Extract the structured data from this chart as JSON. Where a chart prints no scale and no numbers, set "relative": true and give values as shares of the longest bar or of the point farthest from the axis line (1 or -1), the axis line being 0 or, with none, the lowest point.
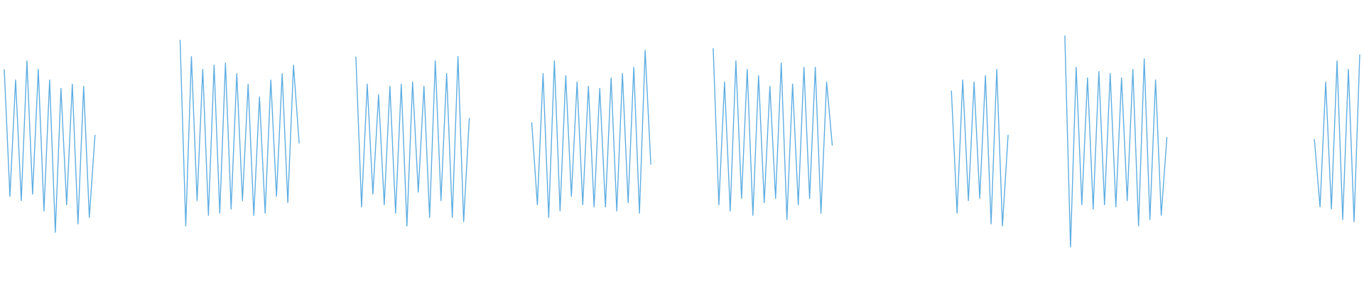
{
  "chart_data": {
    "type": "line",
    "relative": true,
    "categories": [
      null,
      null,
      null,
      null,
      null,
      null,
      null,
      null,
      null,
      null,
      null,
      null,
      null,
      null,
      null,
      null,
      null,
      null,
      null,
      null,
      null,
      null,
      null,
      null,
      null,
      null,
      null,
      null,
      null,
      null,
      null,
      null,
      null,
      null,
      null,
      null,
      null,
      null,
      null,
      null,
      null,
      null,
      null,
      null,
      null,
      null,
      null,
      null,
      null,
      null,
      null,
      null,
      null,
      null,
      null,
      null,
      null,
      null,
      null,
      null,
      null,
      null,
      null,
      null,
      null,
      null,
      null,
      null,
      null,
      null,
      null,
      null,
      null,
      null,
      null,
      null,
      null,
      null,
      null,
      null,
      null,
      null,
      null,
      null,
      null,
      null,
      null,
      null,
      null,
      null,
      null,
      null,
      null,
      null,
      null,
      null,
      null,
      null,
      null,
      null,
      null,
      null,
      null,
      null,
      null,
      null,
      null,
      null,
      null,
      null,
      null,
      null,
      null,
      null,
      null,
      null,
      null,
      null,
      null,
      null,
      null,
      null,
      null,
      null,
      null,
      null,
      null,
      null,
      null,
      null,
      null,
      null,
      null,
      null,
      null,
      null,
      null,
      null,
      null,
      null,
      null,
      null,
      null,
      null,
      null,
      null,
      null,
      null,
      null,
      null,
      null,
      null,
      null,
      null,
      null,
      null,
      null,
      null,
      null,
      null,
      null,
      null,
      null,
      null,
      null,
      null,
      null,
      null,
      null,
      null,
      null,
      null,
      null,
      null,
      null,
      null,
      null,
      null,
      null,
      null,
      null,
      null,
      null,
      null,
      null,
      null,
      null,
      null,
      null,
      null,
      null,
      null,
      null,
      null,
      null,
      null,
      null,
      null,
      null,
      null,
      null,
      null,
      null,
      null,
      null,
      null,
      null,
      null,
      null,
      null,
      null,
      null,
      null,
      null,
      null,
      null,
      null,
      null,
      null,
      null,
      null,
      null,
      null,
      null,
      null,
      null,
      null,
      null,
      null,
      null,
      null,
      null,
      null,
      null,
      null,
      null,
      null,
      null,
      null,
      null
    ],
    "series": [
      {
        "color": "#5dade2",
        "values": [
          0.84,
          0.24,
          0.79,
          0.22,
          0.88,
          0.25,
          0.84,
          0.17,
          0.79,
          0.07,
          0.75,
          0.2,
          0.77,
          0.11,
          0.76,
          0.14,
          0.53,
          null,
          null,
          null,
          null,
          null,
          null,
          null,
          null,
          null,
          null,
          null,
          null,
          null,
          null,
          null,
          null,
          null,
          null,
          null,
          null,
          null,
          null,
          null,
          null,
          null,
          null,
          null,
          null,
          null,
          null,
          null,
          null,
          null,
          null,
          null,
          null,
          null,
          null,
          null,
          null,
          null,
          null,
          null,
          null,
          null,
          null,
          null,
          null,
          null,
          null,
          null,
          null,
          null,
          null,
          null,
          null,
          null,
          null,
          null,
          null,
          null,
          null,
          null,
          null,
          null,
          null,
          null,
          null,
          null,
          null,
          null,
          null,
          null,
          null,
          null,
          null,
          null,
          null,
          null,
          null,
          null,
          null,
          null,
          null,
          null,
          null,
          null,
          null,
          null,
          null,
          null,
          null,
          null,
          null,
          null,
          null,
          null,
          null,
          null,
          null,
          null,
          null,
          null,
          null,
          null,
          null,
          null,
          null,
          null,
          null,
          null,
          null,
          null,
          null,
          null,
          null,
          null,
          null,
          null,
          null,
          null,
          null,
          null,
          null,
          null,
          null,
          null,
          null,
          null,
          null,
          null,
          null,
          null,
          null,
          null,
          null,
          null,
          null,
          null,
          null,
          null,
          null,
          null,
          null,
          null,
          null,
          null,
          null,
          null,
          null,
          null,
          null,
          null,
          null,
          null,
          null,
          null,
          null,
          null,
          null,
          null,
          null,
          null,
          null,
          null,
          null,
          null,
          null,
          null,
          null,
          null,
          null,
          null,
          null,
          null,
          null,
          null,
          null,
          null,
          null,
          null,
          null,
          null,
          null,
          null,
          null,
          null,
          null,
          null,
          null,
          null,
          null,
          null,
          null,
          null,
          null,
          null,
          null,
          null,
          null,
          null,
          null,
          null,
          null,
          null,
          null,
          null,
          null,
          null,
          null,
          null,
          null,
          null,
          null,
          null,
          null,
          null,
          null,
          null,
          null,
          null,
          null,
          null
        ]
      },
      {
        "color": "#5dade2",
        "values": [
          null,
          null,
          null,
          null,
          null,
          null,
          null,
          null,
          null,
          null,
          null,
          null,
          null,
          null,
          null,
          null,
          null,
          null,
          null,
          null,
          null,
          null,
          null,
          null,
          null,
          null,
          null,
          null,
          null,
          null,
          null,
          0.98,
          0.1,
          0.9,
          0.22,
          0.84,
          0.15,
          0.86,
          0.16,
          0.87,
          0.18,
          0.82,
          0.22,
          0.77,
          0.15,
          0.71,
          0.16,
          0.79,
          0.24,
          0.82,
          0.21,
          0.86,
          0.49,
          null,
          null,
          null,
          null,
          null,
          null,
          null,
          null,
          null,
          null,
          null,
          null,
          null,
          null,
          null,
          null,
          null,
          null,
          null,
          null,
          null,
          null,
          null,
          null,
          null,
          null,
          null,
          null,
          null,
          null,
          null,
          null,
          null,
          null,
          null,
          null,
          null,
          null,
          null,
          null,
          null,
          null,
          null,
          null,
          null,
          null,
          null,
          null,
          null,
          null,
          null,
          null,
          null,
          null,
          null,
          null,
          null,
          null,
          null,
          null,
          null,
          null,
          null,
          null,
          null,
          null,
          null,
          null,
          null,
          null,
          null,
          null,
          null,
          null,
          null,
          null,
          null,
          null,
          null,
          null,
          null,
          null,
          null,
          null,
          null,
          null,
          null,
          null,
          null,
          null,
          null,
          null,
          null,
          null,
          null,
          null,
          null,
          null,
          null,
          null,
          null,
          null,
          null,
          null,
          null,
          null,
          null,
          null,
          null,
          null,
          null,
          null,
          null,
          null,
          null,
          null,
          null,
          null,
          null,
          null,
          null,
          null,
          null,
          null,
          null,
          null,
          null,
          null,
          null,
          null,
          null,
          null,
          null,
          null,
          null,
          null,
          null,
          null,
          null,
          null,
          null,
          null,
          null,
          null,
          null,
          null,
          null,
          null,
          null,
          null,
          null,
          null,
          null,
          null,
          null,
          null,
          null,
          null,
          null,
          null,
          null,
          null,
          null,
          null,
          null,
          null,
          null,
          null,
          null,
          null,
          null,
          null,
          null,
          null,
          null,
          null,
          null,
          null,
          null,
          null,
          null,
          null,
          null,
          null,
          null,
          null,
          null
        ]
      },
      {
        "color": "#5dade2",
        "values": [
          null,
          null,
          null,
          null,
          null,
          null,
          null,
          null,
          null,
          null,
          null,
          null,
          null,
          null,
          null,
          null,
          null,
          null,
          null,
          null,
          null,
          null,
          null,
          null,
          null,
          null,
          null,
          null,
          null,
          null,
          null,
          null,
          null,
          null,
          null,
          null,
          null,
          null,
          null,
          null,
          null,
          null,
          null,
          null,
          null,
          null,
          null,
          null,
          null,
          null,
          null,
          null,
          null,
          null,
          null,
          null,
          null,
          null,
          null,
          null,
          null,
          null,
          0.9,
          0.19,
          0.77,
          0.25,
          0.72,
          0.2,
          0.76,
          0.16,
          0.77,
          0.1,
          0.78,
          0.26,
          0.76,
          0.14,
          0.88,
          0.22,
          0.82,
          0.14,
          0.9,
          0.12,
          0.61,
          null,
          null,
          null,
          null,
          null,
          null,
          null,
          null,
          null,
          null,
          null,
          null,
          null,
          null,
          null,
          null,
          null,
          null,
          null,
          null,
          null,
          null,
          null,
          null,
          null,
          null,
          null,
          null,
          null,
          null,
          null,
          null,
          null,
          null,
          null,
          null,
          null,
          null,
          null,
          null,
          null,
          null,
          null,
          null,
          null,
          null,
          null,
          null,
          null,
          null,
          null,
          null,
          null,
          null,
          null,
          null,
          null,
          null,
          null,
          null,
          null,
          null,
          null,
          null,
          null,
          null,
          null,
          null,
          null,
          null,
          null,
          null,
          null,
          null,
          null,
          null,
          null,
          null,
          null,
          null,
          null,
          null,
          null,
          null,
          null,
          null,
          null,
          null,
          null,
          null,
          null,
          null,
          null,
          null,
          null,
          null,
          null,
          null,
          null,
          null,
          null,
          null,
          null,
          null,
          null,
          null,
          null,
          null,
          null,
          null,
          null,
          null,
          null,
          null,
          null,
          null,
          null,
          null,
          null,
          null,
          null,
          null,
          null,
          null,
          null,
          null,
          null,
          null,
          null,
          null,
          null,
          null,
          null,
          null,
          null,
          null,
          null,
          null,
          null,
          null,
          null,
          null,
          null,
          null,
          null,
          null,
          null,
          null,
          null,
          null,
          null,
          null,
          null,
          null,
          null,
          null,
          null
        ]
      },
      {
        "color": "#5dade2",
        "values": [
          null,
          null,
          null,
          null,
          null,
          null,
          null,
          null,
          null,
          null,
          null,
          null,
          null,
          null,
          null,
          null,
          null,
          null,
          null,
          null,
          null,
          null,
          null,
          null,
          null,
          null,
          null,
          null,
          null,
          null,
          null,
          null,
          null,
          null,
          null,
          null,
          null,
          null,
          null,
          null,
          null,
          null,
          null,
          null,
          null,
          null,
          null,
          null,
          null,
          null,
          null,
          null,
          null,
          null,
          null,
          null,
          null,
          null,
          null,
          null,
          null,
          null,
          null,
          null,
          null,
          null,
          null,
          null,
          null,
          null,
          null,
          null,
          null,
          null,
          null,
          null,
          null,
          null,
          null,
          null,
          null,
          null,
          null,
          null,
          null,
          null,
          null,
          null,
          null,
          null,
          null,
          null,
          null,
          0.59,
          0.2,
          0.82,
          0.14,
          0.88,
          0.17,
          0.81,
          0.24,
          0.78,
          0.2,
          0.76,
          0.19,
          0.75,
          0.19,
          0.8,
          0.17,
          0.82,
          0.21,
          0.85,
          0.16,
          0.93,
          0.39,
          null,
          null,
          null,
          null,
          null,
          null,
          null,
          null,
          null,
          null,
          null,
          null,
          null,
          null,
          null,
          null,
          null,
          null,
          null,
          null,
          null,
          null,
          null,
          null,
          null,
          null,
          null,
          null,
          null,
          null,
          null,
          null,
          null,
          null,
          null,
          null,
          null,
          null,
          null,
          null,
          null,
          null,
          null,
          null,
          null,
          null,
          null,
          null,
          null,
          null,
          null,
          null,
          null,
          null,
          null,
          null,
          null,
          null,
          null,
          null,
          null,
          null,
          null,
          null,
          null,
          null,
          null,
          null,
          null,
          null,
          null,
          null,
          null,
          null,
          null,
          null,
          null,
          null,
          null,
          null,
          null,
          null,
          null,
          null,
          null,
          null,
          null,
          null,
          null,
          null,
          null,
          null,
          null,
          null,
          null,
          null,
          null,
          null,
          null,
          null,
          null,
          null,
          null,
          null,
          null,
          null,
          null,
          null,
          null,
          null,
          null,
          null,
          null,
          null,
          null,
          null,
          null,
          null,
          null,
          null,
          null,
          null,
          null,
          null,
          null
        ]
      },
      {
        "color": "#5dade2",
        "values": [
          null,
          null,
          null,
          null,
          null,
          null,
          null,
          null,
          null,
          null,
          null,
          null,
          null,
          null,
          null,
          null,
          null,
          null,
          null,
          null,
          null,
          null,
          null,
          null,
          null,
          null,
          null,
          null,
          null,
          null,
          null,
          null,
          null,
          null,
          null,
          null,
          null,
          null,
          null,
          null,
          null,
          null,
          null,
          null,
          null,
          null,
          null,
          null,
          null,
          null,
          null,
          null,
          null,
          null,
          null,
          null,
          null,
          null,
          null,
          null,
          null,
          null,
          null,
          null,
          null,
          null,
          null,
          null,
          null,
          null,
          null,
          null,
          null,
          null,
          null,
          null,
          null,
          null,
          null,
          null,
          null,
          null,
          null,
          null,
          null,
          null,
          null,
          null,
          null,
          null,
          null,
          null,
          null,
          null,
          null,
          null,
          null,
          null,
          null,
          null,
          null,
          null,
          null,
          null,
          null,
          null,
          null,
          null,
          null,
          null,
          null,
          null,
          null,
          null,
          null,
          null,
          null,
          null,
          null,
          null,
          null,
          null,
          null,
          null,
          null,
          0.94,
          0.2,
          0.78,
          0.17,
          0.88,
          0.23,
          0.84,
          0.15,
          0.81,
          0.21,
          0.76,
          0.23,
          0.87,
          0.13,
          0.77,
          0.2,
          0.85,
          0.23,
          0.85,
          0.16,
          0.78,
          0.48,
          null,
          null,
          null,
          null,
          null,
          null,
          null,
          null,
          null,
          null,
          null,
          null,
          null,
          null,
          null,
          null,
          null,
          null,
          null,
          null,
          null,
          null,
          null,
          null,
          null,
          null,
          null,
          null,
          null,
          null,
          null,
          null,
          null,
          null,
          null,
          null,
          null,
          null,
          null,
          null,
          null,
          null,
          null,
          null,
          null,
          null,
          null,
          null,
          null,
          null,
          null,
          null,
          null,
          null,
          null,
          null,
          null,
          null,
          null,
          null,
          null,
          null,
          null,
          null,
          null,
          null,
          null,
          null,
          null,
          null,
          null,
          null,
          null,
          null,
          null,
          null,
          null,
          null,
          null,
          null,
          null,
          null,
          null,
          null,
          null,
          null,
          null,
          null,
          null,
          null,
          null,
          null,
          null
        ]
      },
      {
        "color": "#5dade2",
        "values": [
          null,
          null,
          null,
          null,
          null,
          null,
          null,
          null,
          null,
          null,
          null,
          null,
          null,
          null,
          null,
          null,
          null,
          null,
          null,
          null,
          null,
          null,
          null,
          null,
          null,
          null,
          null,
          null,
          null,
          null,
          null,
          null,
          null,
          null,
          null,
          null,
          null,
          null,
          null,
          null,
          null,
          null,
          null,
          null,
          null,
          null,
          null,
          null,
          null,
          null,
          null,
          null,
          null,
          null,
          null,
          null,
          null,
          null,
          null,
          null,
          null,
          null,
          null,
          null,
          null,
          null,
          null,
          null,
          null,
          null,
          null,
          null,
          null,
          null,
          null,
          null,
          null,
          null,
          null,
          null,
          null,
          null,
          null,
          null,
          null,
          null,
          null,
          null,
          null,
          null,
          null,
          null,
          null,
          null,
          null,
          null,
          null,
          null,
          null,
          null,
          null,
          null,
          null,
          null,
          null,
          null,
          null,
          null,
          null,
          null,
          null,
          null,
          null,
          null,
          null,
          null,
          null,
          null,
          null,
          null,
          null,
          null,
          null,
          null,
          null,
          null,
          null,
          null,
          null,
          null,
          null,
          null,
          null,
          null,
          null,
          null,
          null,
          null,
          null,
          null,
          null,
          null,
          null,
          null,
          null,
          null,
          null,
          null,
          null,
          null,
          null,
          null,
          null,
          null,
          null,
          null,
          null,
          null,
          null,
          null,
          null,
          null,
          null,
          null,
          null,
          null,
          null,
          0.74,
          0.16,
          0.79,
          0.22,
          0.78,
          0.23,
          0.81,
          0.11,
          0.84,
          0.1,
          0.53,
          null,
          null,
          null,
          null,
          null,
          null,
          null,
          null,
          null,
          null,
          null,
          null,
          null,
          null,
          null,
          null,
          null,
          null,
          null,
          null,
          null,
          null,
          null,
          null,
          null,
          null,
          null,
          null,
          null,
          null,
          null,
          null,
          null,
          null,
          null,
          null,
          null,
          null,
          null,
          null,
          null,
          null,
          null,
          null,
          null,
          null,
          null,
          null,
          null,
          null,
          null,
          null,
          null,
          null,
          null,
          null,
          null,
          null,
          null,
          null,
          null,
          null
        ]
      },
      {
        "color": "#5dade2",
        "values": [
          null,
          null,
          null,
          null,
          null,
          null,
          null,
          null,
          null,
          null,
          null,
          null,
          null,
          null,
          null,
          null,
          null,
          null,
          null,
          null,
          null,
          null,
          null,
          null,
          null,
          null,
          null,
          null,
          null,
          null,
          null,
          null,
          null,
          null,
          null,
          null,
          null,
          null,
          null,
          null,
          null,
          null,
          null,
          null,
          null,
          null,
          null,
          null,
          null,
          null,
          null,
          null,
          null,
          null,
          null,
          null,
          null,
          null,
          null,
          null,
          null,
          null,
          null,
          null,
          null,
          null,
          null,
          null,
          null,
          null,
          null,
          null,
          null,
          null,
          null,
          null,
          null,
          null,
          null,
          null,
          null,
          null,
          null,
          null,
          null,
          null,
          null,
          null,
          null,
          null,
          null,
          null,
          null,
          null,
          null,
          null,
          null,
          null,
          null,
          null,
          null,
          null,
          null,
          null,
          null,
          null,
          null,
          null,
          null,
          null,
          null,
          null,
          null,
          null,
          null,
          null,
          null,
          null,
          null,
          null,
          null,
          null,
          null,
          null,
          null,
          null,
          null,
          null,
          null,
          null,
          null,
          null,
          null,
          null,
          null,
          null,
          null,
          null,
          null,
          null,
          null,
          null,
          null,
          null,
          null,
          null,
          null,
          null,
          null,
          null,
          null,
          null,
          null,
          null,
          null,
          null,
          null,
          null,
          null,
          null,
          null,
          null,
          null,
          null,
          null,
          null,
          null,
          null,
          null,
          null,
          null,
          null,
          null,
          null,
          null,
          null,
          null,
          null,
          null,
          null,
          null,
          null,
          null,
          null,
          null,
          null,
          null,
          1.0,
          0.0,
          0.85,
          0.2,
          0.8,
          0.18,
          0.83,
          0.2,
          0.82,
          0.19,
          0.8,
          0.22,
          0.84,
          0.1,
          0.89,
          0.13,
          0.79,
          0.15,
          0.52,
          null,
          null,
          null,
          null,
          null,
          null,
          null,
          null,
          null,
          null,
          null,
          null,
          null,
          null,
          null,
          null,
          null,
          null,
          null,
          null,
          null,
          null,
          null,
          null,
          null,
          null,
          null,
          null,
          null,
          null,
          null,
          null,
          null,
          null
        ]
      },
      {
        "color": "#5dade2",
        "values": [
          null,
          null,
          null,
          null,
          null,
          null,
          null,
          null,
          null,
          null,
          null,
          null,
          null,
          null,
          null,
          null,
          null,
          null,
          null,
          null,
          null,
          null,
          null,
          null,
          null,
          null,
          null,
          null,
          null,
          null,
          null,
          null,
          null,
          null,
          null,
          null,
          null,
          null,
          null,
          null,
          null,
          null,
          null,
          null,
          null,
          null,
          null,
          null,
          null,
          null,
          null,
          null,
          null,
          null,
          null,
          null,
          null,
          null,
          null,
          null,
          null,
          null,
          null,
          null,
          null,
          null,
          null,
          null,
          null,
          null,
          null,
          null,
          null,
          null,
          null,
          null,
          null,
          null,
          null,
          null,
          null,
          null,
          null,
          null,
          null,
          null,
          null,
          null,
          null,
          null,
          null,
          null,
          null,
          null,
          null,
          null,
          null,
          null,
          null,
          null,
          null,
          null,
          null,
          null,
          null,
          null,
          null,
          null,
          null,
          null,
          null,
          null,
          null,
          null,
          null,
          null,
          null,
          null,
          null,
          null,
          null,
          null,
          null,
          null,
          null,
          null,
          null,
          null,
          null,
          null,
          null,
          null,
          null,
          null,
          null,
          null,
          null,
          null,
          null,
          null,
          null,
          null,
          null,
          null,
          null,
          null,
          null,
          null,
          null,
          null,
          null,
          null,
          null,
          null,
          null,
          null,
          null,
          null,
          null,
          null,
          null,
          null,
          null,
          null,
          null,
          null,
          null,
          null,
          null,
          null,
          null,
          null,
          null,
          null,
          null,
          null,
          null,
          null,
          null,
          null,
          null,
          null,
          null,
          null,
          null,
          null,
          null,
          null,
          null,
          null,
          null,
          null,
          null,
          null,
          null,
          null,
          null,
          null,
          null,
          null,
          null,
          null,
          null,
          null,
          null,
          null,
          null,
          null,
          null,
          null,
          null,
          null,
          null,
          null,
          null,
          null,
          null,
          null,
          null,
          null,
          null,
          null,
          null,
          null,
          null,
          null,
          null,
          null,
          null,
          null,
          null,
          0.51,
          0.19,
          0.78,
          0.18,
          0.88,
          0.13,
          0.84,
          0.12,
          0.91
        ]
      }
    ]
  }
}
